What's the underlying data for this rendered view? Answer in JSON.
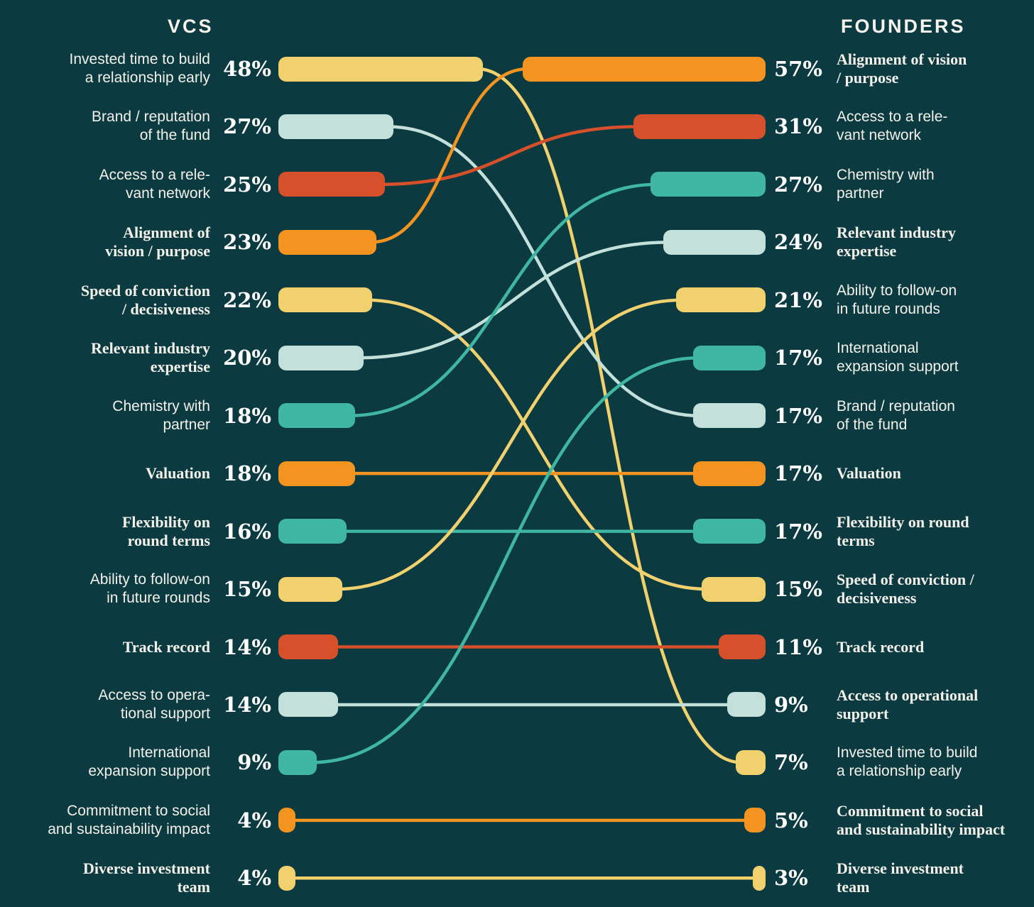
{
  "header": {
    "left_title": "VCS",
    "right_title": "FOUNDERS"
  },
  "colors": {
    "background": "#0C3A41",
    "text": "#F3F1E9",
    "yellow": "#F1D06E",
    "pale_teal": "#C3E0DB",
    "red": "#D5502B",
    "orange": "#F39421",
    "teal": "#40B7A2"
  },
  "chart_data": {
    "type": "bar",
    "subtype": "paired-bar-slope-comparison",
    "left_column": "VCs",
    "right_column": "Founders",
    "unit": "%",
    "items": [
      {
        "id": "invested-time",
        "label": "Invested time to build a relationship early",
        "vc": 48,
        "founder": 7,
        "founder_row": 12,
        "color": "yellow",
        "vc_serif": false,
        "founder_serif": false,
        "vc_label_lines": [
          "Invested time to build",
          "a relationship early"
        ],
        "founder_label_lines": [
          "Invested time to build",
          "a relationship early"
        ]
      },
      {
        "id": "brand-reputation",
        "label": "Brand / reputation of the fund",
        "vc": 27,
        "founder": 17,
        "founder_row": 6,
        "color": "pale_teal",
        "vc_serif": false,
        "founder_serif": false,
        "vc_label_lines": [
          "Brand / reputation",
          "of the fund"
        ],
        "founder_label_lines": [
          "Brand / reputation",
          "of the fund"
        ]
      },
      {
        "id": "access-network",
        "label": "Access to a relevant network",
        "vc": 25,
        "founder": 31,
        "founder_row": 1,
        "color": "red",
        "vc_serif": false,
        "founder_serif": false,
        "vc_label_lines": [
          "Access to a rele-",
          "vant network"
        ],
        "founder_label_lines": [
          "Access to a rele-",
          "vant network"
        ]
      },
      {
        "id": "alignment-vision",
        "label": "Alignment of vision / purpose",
        "vc": 23,
        "founder": 57,
        "founder_row": 0,
        "color": "orange",
        "vc_serif": true,
        "founder_serif": true,
        "vc_label_lines": [
          "Alignment of",
          "vision / purpose"
        ],
        "founder_label_lines": [
          "Alignment of vision",
          "/ purpose"
        ]
      },
      {
        "id": "speed-conviction",
        "label": "Speed of conviction / decisiveness",
        "vc": 22,
        "founder": 15,
        "founder_row": 9,
        "color": "yellow",
        "vc_serif": true,
        "founder_serif": true,
        "vc_label_lines": [
          "Speed of conviction",
          "/ decisiveness"
        ],
        "founder_label_lines": [
          "Speed of conviction /",
          "decisiveness"
        ]
      },
      {
        "id": "industry-expertise",
        "label": "Relevant industry expertise",
        "vc": 20,
        "founder": 24,
        "founder_row": 3,
        "color": "pale_teal",
        "vc_serif": true,
        "founder_serif": true,
        "vc_label_lines": [
          "Relevant industry",
          "expertise"
        ],
        "founder_label_lines": [
          "Relevant industry",
          "expertise"
        ]
      },
      {
        "id": "chemistry-partner",
        "label": "Chemistry with partner",
        "vc": 18,
        "founder": 27,
        "founder_row": 2,
        "color": "teal",
        "vc_serif": false,
        "founder_serif": false,
        "vc_label_lines": [
          "Chemistry with",
          "partner"
        ],
        "founder_label_lines": [
          "Chemistry with",
          "partner"
        ]
      },
      {
        "id": "valuation",
        "label": "Valuation",
        "vc": 18,
        "founder": 17,
        "founder_row": 7,
        "color": "orange",
        "vc_serif": true,
        "founder_serif": true,
        "vc_label_lines": [
          "Valuation"
        ],
        "founder_label_lines": [
          "Valuation"
        ]
      },
      {
        "id": "flexibility-round-terms",
        "label": "Flexibility on round terms",
        "vc": 16,
        "founder": 17,
        "founder_row": 8,
        "color": "teal",
        "vc_serif": true,
        "founder_serif": true,
        "vc_label_lines": [
          "Flexibility on",
          "round terms"
        ],
        "founder_label_lines": [
          "Flexibility on round",
          "terms"
        ]
      },
      {
        "id": "follow-on",
        "label": "Ability to follow-on in future rounds",
        "vc": 15,
        "founder": 21,
        "founder_row": 4,
        "color": "yellow",
        "vc_serif": false,
        "founder_serif": false,
        "vc_label_lines": [
          "Ability to follow-on",
          "in future rounds"
        ],
        "founder_label_lines": [
          "Ability to follow-on",
          "in future rounds"
        ]
      },
      {
        "id": "track-record",
        "label": "Track record",
        "vc": 14,
        "founder": 11,
        "founder_row": 10,
        "color": "red",
        "vc_serif": true,
        "founder_serif": true,
        "vc_label_lines": [
          "Track record"
        ],
        "founder_label_lines": [
          "Track record"
        ]
      },
      {
        "id": "operational-support",
        "label": "Access to operational support",
        "vc": 14,
        "founder": 9,
        "founder_row": 11,
        "color": "pale_teal",
        "vc_serif": false,
        "founder_serif": true,
        "vc_label_lines": [
          "Access to opera-",
          "tional support"
        ],
        "founder_label_lines": [
          "Access to operational",
          "support"
        ]
      },
      {
        "id": "international-expansion",
        "label": "International expansion support",
        "vc": 9,
        "founder": 17,
        "founder_row": 5,
        "color": "teal",
        "vc_serif": false,
        "founder_serif": false,
        "vc_label_lines": [
          "International",
          "expansion support"
        ],
        "founder_label_lines": [
          "International",
          "expansion support"
        ]
      },
      {
        "id": "social-impact",
        "label": "Commitment to social and sustainability impact",
        "vc": 4,
        "founder": 5,
        "founder_row": 13,
        "color": "orange",
        "vc_serif": false,
        "founder_serif": true,
        "vc_label_lines": [
          "Commitment to social",
          "and sustainability impact"
        ],
        "founder_label_lines": [
          "Commitment to social",
          "and sustainability impact"
        ]
      },
      {
        "id": "diverse-team",
        "label": "Diverse investment team",
        "vc": 4,
        "founder": 3,
        "founder_row": 14,
        "color": "yellow",
        "vc_serif": true,
        "founder_serif": true,
        "vc_label_lines": [
          "Diverse investment",
          "team"
        ],
        "founder_label_lines": [
          "Diverse investment",
          "team"
        ]
      }
    ]
  }
}
